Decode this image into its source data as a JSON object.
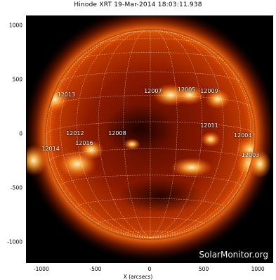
{
  "title": "Hinode XRT 19-Mar-2014 18:03:11.938",
  "watermark": "SolarMonitor.org",
  "axes": {
    "xlabel": "X (arcsecs)",
    "xticks": [
      "-1000",
      "-500",
      "0",
      "500",
      "1000"
    ],
    "yticks": [
      "1000",
      "500",
      "0",
      "-500",
      "-1000"
    ]
  },
  "active_regions": [
    {
      "label": "12013",
      "x": -780,
      "y": 365
    },
    {
      "label": "12007",
      "x": 20,
      "y": 395
    },
    {
      "label": "12005",
      "x": 330,
      "y": 410
    },
    {
      "label": "12009",
      "x": 540,
      "y": 395
    },
    {
      "label": "12012",
      "x": -700,
      "y": 5
    },
    {
      "label": "12008",
      "x": -310,
      "y": 5
    },
    {
      "label": "12011",
      "x": 540,
      "y": 75
    },
    {
      "label": "12004",
      "x": 850,
      "y": -15
    },
    {
      "label": "12016",
      "x": -615,
      "y": -85
    },
    {
      "label": "12014",
      "x": -925,
      "y": -135
    },
    {
      "label": "12003",
      "x": 920,
      "y": -195
    }
  ],
  "colors": {
    "disk_center": "#7a1200",
    "disk_edge": "#c53d00",
    "corona": "#ff6a10",
    "grid": "#ffffff"
  }
}
